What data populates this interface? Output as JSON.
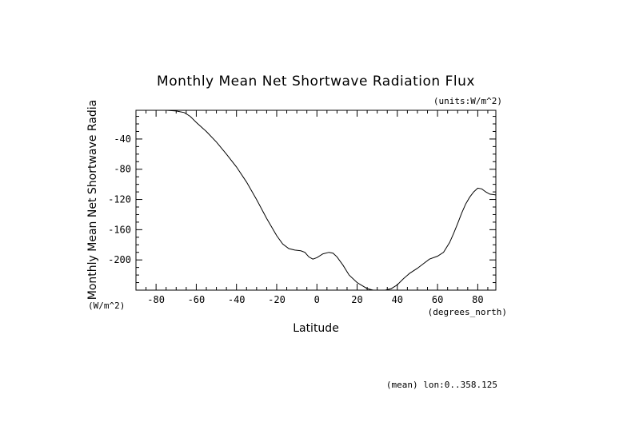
{
  "chart_data": {
    "type": "line",
    "title": "Monthly Mean Net Shortwave Radiation Flux",
    "units_label": "(units:W/m^2)",
    "xlabel": "Latitude",
    "x_units": "(degrees_north)",
    "ylabel": "Monthly Mean Net Shortwave Radia",
    "y_units": "(W/m^2)",
    "footnote": "(mean) lon:0..358.125",
    "xlim": [
      -90,
      89
    ],
    "ylim": [
      -240,
      -2
    ],
    "x_ticks": [
      -80,
      -60,
      -40,
      -20,
      0,
      20,
      40,
      60,
      80
    ],
    "x_tick_labels": [
      "-80",
      "-60",
      "-40",
      "-20",
      "0",
      "20",
      "40",
      "60",
      "80"
    ],
    "y_ticks": [
      -40,
      -80,
      -120,
      -160,
      -200
    ],
    "y_tick_labels": [
      "-40",
      "-80",
      "-120",
      "-160",
      "-200"
    ],
    "grid": false,
    "series": [
      {
        "x": [
          -75,
          -70,
          -66,
          -63,
          -60,
          -55,
          -50,
          -45,
          -40,
          -35,
          -30,
          -25,
          -20,
          -17,
          -14,
          -11,
          -8,
          -6,
          -4,
          -2,
          0,
          3,
          6,
          8,
          10,
          13,
          16,
          20,
          25,
          28,
          31,
          34,
          37,
          40,
          43,
          46,
          50,
          53,
          56,
          60,
          63,
          66,
          68,
          70,
          72,
          74,
          76,
          78,
          80,
          82,
          84,
          86,
          89
        ],
        "y": [
          -2,
          -3,
          -5,
          -10,
          -18,
          -30,
          -44,
          -60,
          -77,
          -97,
          -120,
          -145,
          -168,
          -179,
          -185,
          -187,
          -188,
          -190,
          -196,
          -199,
          -197,
          -192,
          -190,
          -191,
          -196,
          -207,
          -220,
          -230,
          -238,
          -240,
          -240,
          -240,
          -238,
          -233,
          -225,
          -218,
          -211,
          -205,
          -199,
          -195,
          -190,
          -177,
          -165,
          -152,
          -138,
          -126,
          -117,
          -110,
          -105,
          -106,
          -110,
          -113,
          -114
        ]
      }
    ]
  }
}
